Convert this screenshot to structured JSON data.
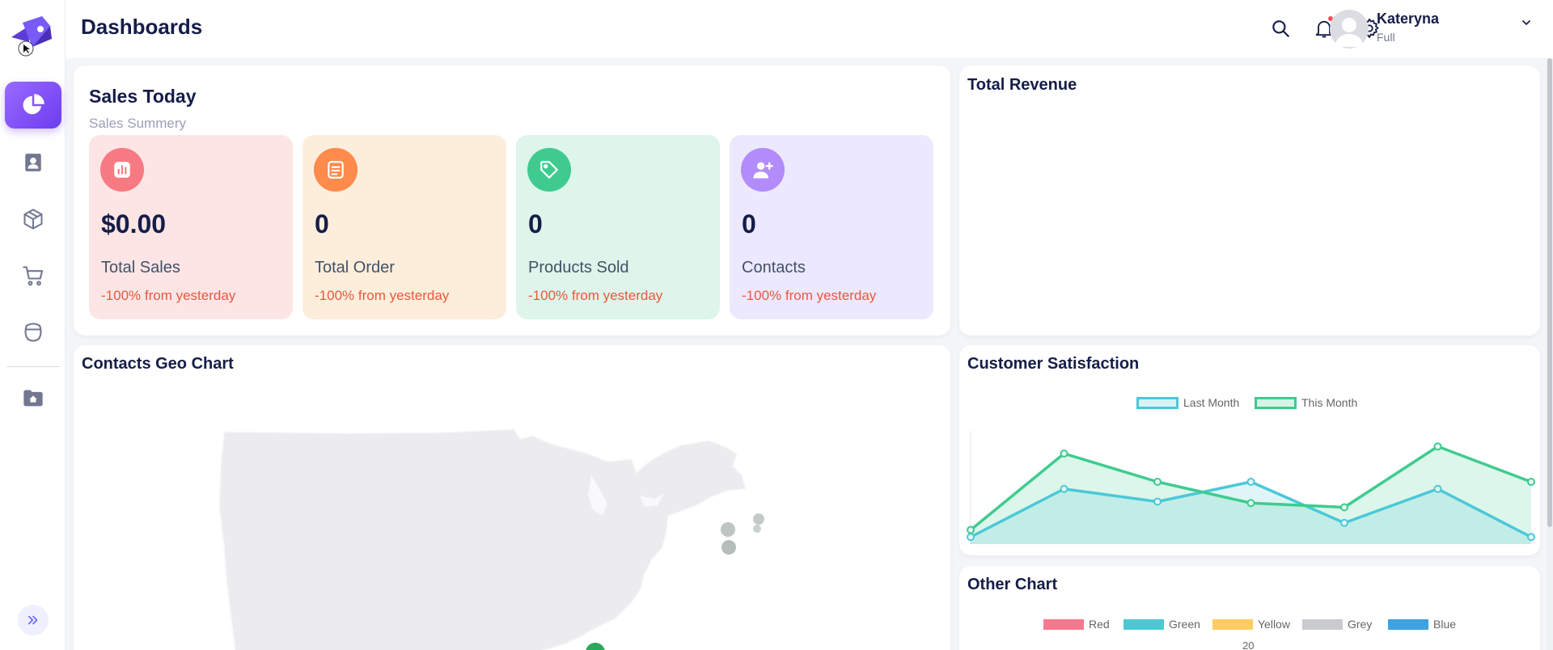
{
  "header": {
    "title": "Dashboards",
    "user": {
      "name": "Kateryna",
      "role": "Full"
    }
  },
  "sidebar": {
    "items": [
      {
        "icon": "pie-chart-icon",
        "active": true
      },
      {
        "icon": "contact-book-icon"
      },
      {
        "icon": "box-icon"
      },
      {
        "icon": "cart-icon"
      },
      {
        "icon": "basket-icon"
      },
      {
        "icon": "folder-home-icon"
      }
    ]
  },
  "sales_today": {
    "title": "Sales Today",
    "subtitle": "Sales Summery",
    "stats": [
      {
        "value": "$0.00",
        "label": "Total Sales",
        "change": "-100% from yesterday",
        "bg": "#fde5e5",
        "icon_bg": "#f77a82",
        "icon": "bar-chart-icon"
      },
      {
        "value": "0",
        "label": "Total Order",
        "change": "-100% from yesterday",
        "bg": "#fdeedc",
        "icon_bg": "#fe8a4c",
        "icon": "document-icon"
      },
      {
        "value": "0",
        "label": "Products Sold",
        "change": "-100% from yesterday",
        "bg": "#ddf5ea",
        "icon_bg": "#3fcb8f",
        "icon": "tag-icon"
      },
      {
        "value": "0",
        "label": "Contacts",
        "change": "-100% from yesterday",
        "bg": "#ece8fe",
        "icon_bg": "#b28cfa",
        "icon": "add-user-icon"
      }
    ]
  },
  "total_revenue": {
    "title": "Total Revenue"
  },
  "geo_chart": {
    "title": "Contacts Geo Chart"
  },
  "customer_satisfaction": {
    "title": "Customer Satisfaction",
    "legend": [
      "Last Month",
      "This Month"
    ]
  },
  "other_chart": {
    "title": "Other Chart",
    "legend": [
      {
        "name": "Red",
        "color": "#f6798e"
      },
      {
        "name": "Green",
        "color": "#4bc8d2"
      },
      {
        "name": "Yellow",
        "color": "#fdcd62"
      },
      {
        "name": "Grey",
        "color": "#c9cbcf"
      },
      {
        "name": "Blue",
        "color": "#3ea2e3"
      }
    ],
    "first_tick": "20"
  },
  "chart_data": {
    "type": "area",
    "series": [
      {
        "name": "Last Month",
        "color": "#4bc8d8",
        "values": [
          0.5,
          3.9,
          3.0,
          4.4,
          1.5,
          3.9,
          0.5
        ]
      },
      {
        "name": "This Month",
        "color": "#3fcb8f",
        "values": [
          1.0,
          6.4,
          4.4,
          2.9,
          2.6,
          6.9,
          4.4
        ]
      }
    ],
    "ylim": [
      0,
      8
    ]
  }
}
